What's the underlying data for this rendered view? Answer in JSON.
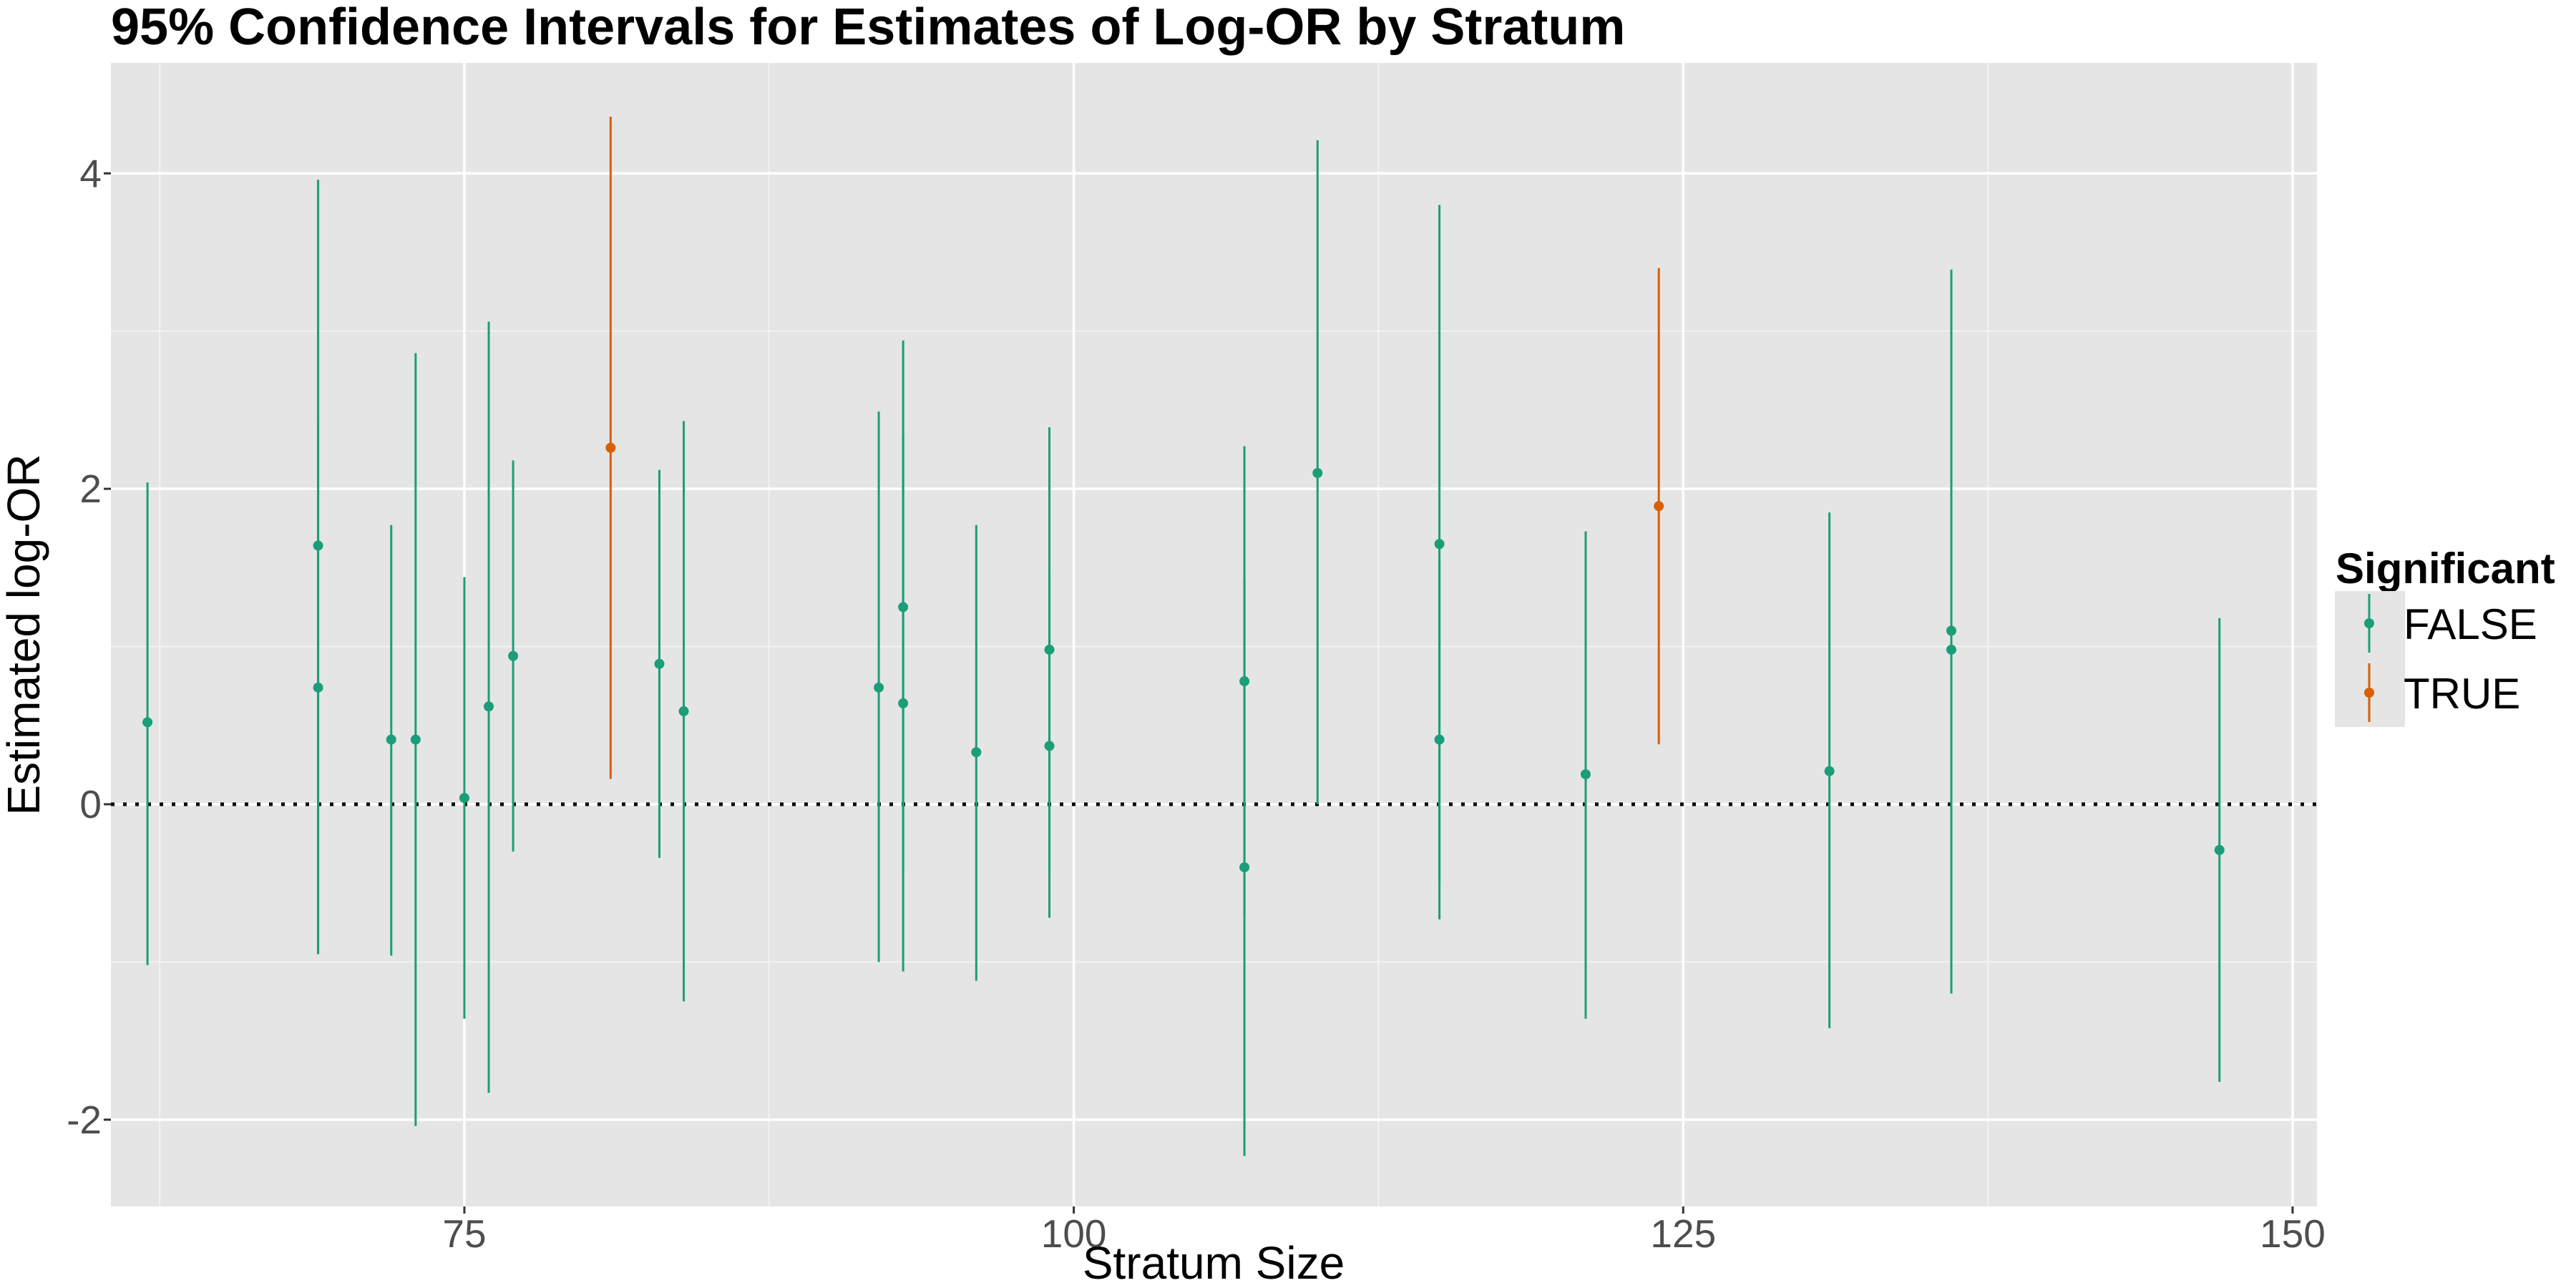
{
  "chart_data": {
    "type": "scatter",
    "title": "95% Confidence Intervals for Estimates of Log-OR by Stratum",
    "xlabel": "Stratum Size",
    "ylabel": "Estimated log-OR",
    "xlim": [
      60.5,
      151
    ],
    "ylim": [
      -2.55,
      4.7
    ],
    "x_ticks": [
      75,
      100,
      125,
      150
    ],
    "y_ticks": [
      -2,
      0,
      2,
      4
    ],
    "x_tick_labels": [
      "75",
      "100",
      "125",
      "150"
    ],
    "y_tick_labels": [
      "-2",
      "0",
      "2",
      "4"
    ],
    "reference_line": {
      "y": 0,
      "style": "dotted"
    },
    "grid": true,
    "legend": {
      "title": "Significant",
      "position": "right",
      "entries": [
        {
          "label": "FALSE",
          "color": "#1b9e77"
        },
        {
          "label": "TRUE",
          "color": "#d95f02"
        }
      ]
    },
    "colors": {
      "FALSE": "#1b9e77",
      "TRUE": "#d95f02",
      "panel": "#e5e5e5",
      "grid_major": "#ffffff",
      "grid_minor": "#f2f2f2"
    },
    "points": [
      {
        "x": 62,
        "y": 0.52,
        "lower": -1.02,
        "upper": 2.04,
        "significant": "FALSE"
      },
      {
        "x": 69,
        "y": 1.64,
        "lower": -0.95,
        "upper": 3.96,
        "significant": "FALSE"
      },
      {
        "x": 69,
        "y": 0.74,
        "lower": -0.95,
        "upper": 2.45,
        "significant": "FALSE"
      },
      {
        "x": 72,
        "y": 0.41,
        "lower": -0.96,
        "upper": 1.77,
        "significant": "FALSE"
      },
      {
        "x": 73,
        "y": 0.41,
        "lower": -2.04,
        "upper": 2.86,
        "significant": "FALSE"
      },
      {
        "x": 75,
        "y": 0.04,
        "lower": -1.36,
        "upper": 1.44,
        "significant": "FALSE"
      },
      {
        "x": 76,
        "y": 0.62,
        "lower": -1.83,
        "upper": 3.06,
        "significant": "FALSE"
      },
      {
        "x": 77,
        "y": 0.94,
        "lower": -0.3,
        "upper": 2.18,
        "significant": "FALSE"
      },
      {
        "x": 81,
        "y": 2.26,
        "lower": 0.16,
        "upper": 4.36,
        "significant": "TRUE"
      },
      {
        "x": 83,
        "y": 0.89,
        "lower": -0.34,
        "upper": 2.12,
        "significant": "FALSE"
      },
      {
        "x": 84,
        "y": 0.59,
        "lower": -1.25,
        "upper": 2.43,
        "significant": "FALSE"
      },
      {
        "x": 92,
        "y": 0.74,
        "lower": -1.0,
        "upper": 2.49,
        "significant": "FALSE"
      },
      {
        "x": 93,
        "y": 1.25,
        "lower": -0.44,
        "upper": 2.94,
        "significant": "FALSE"
      },
      {
        "x": 93,
        "y": 0.64,
        "lower": -1.06,
        "upper": 2.34,
        "significant": "FALSE"
      },
      {
        "x": 96,
        "y": 0.33,
        "lower": -1.12,
        "upper": 1.77,
        "significant": "FALSE"
      },
      {
        "x": 99,
        "y": 0.98,
        "lower": -0.43,
        "upper": 2.39,
        "significant": "FALSE"
      },
      {
        "x": 99,
        "y": 0.37,
        "lower": -0.72,
        "upper": 1.46,
        "significant": "FALSE"
      },
      {
        "x": 107,
        "y": 0.78,
        "lower": -0.71,
        "upper": 2.27,
        "significant": "FALSE"
      },
      {
        "x": 107,
        "y": -0.4,
        "lower": -2.23,
        "upper": 1.43,
        "significant": "FALSE"
      },
      {
        "x": 110,
        "y": 2.1,
        "lower": 0.0,
        "upper": 4.21,
        "significant": "FALSE"
      },
      {
        "x": 115,
        "y": 1.65,
        "lower": -0.5,
        "upper": 3.8,
        "significant": "FALSE"
      },
      {
        "x": 115,
        "y": 0.41,
        "lower": -0.73,
        "upper": 1.55,
        "significant": "FALSE"
      },
      {
        "x": 121,
        "y": 0.19,
        "lower": -1.36,
        "upper": 1.73,
        "significant": "FALSE"
      },
      {
        "x": 124,
        "y": 1.89,
        "lower": 0.38,
        "upper": 3.4,
        "significant": "TRUE"
      },
      {
        "x": 131,
        "y": 0.21,
        "lower": -1.42,
        "upper": 1.85,
        "significant": "FALSE"
      },
      {
        "x": 136,
        "y": 1.1,
        "lower": -1.2,
        "upper": 3.39,
        "significant": "FALSE"
      },
      {
        "x": 136,
        "y": 0.98,
        "lower": -0.95,
        "upper": 2.9,
        "significant": "FALSE"
      },
      {
        "x": 147,
        "y": -0.29,
        "lower": -1.76,
        "upper": 1.18,
        "significant": "FALSE"
      }
    ]
  }
}
